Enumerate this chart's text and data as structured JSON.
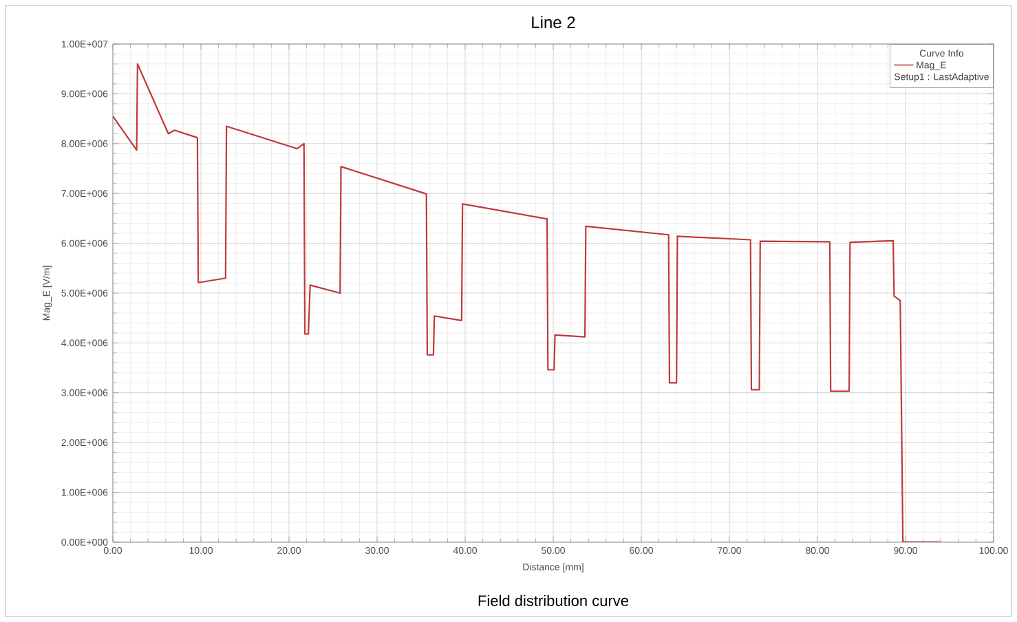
{
  "chart_data": {
    "type": "line",
    "title": "Line 2",
    "xlabel": "Distance [mm]",
    "ylabel": "Mag_E [V/m]",
    "legend_title": "Curve Info",
    "legend": "top right",
    "grid": true,
    "annotations": [
      "Setup1 : LastAdaptive",
      "Field distribution curve"
    ],
    "xlim": [
      0,
      100
    ],
    "ylim": [
      0,
      10000000
    ],
    "xticks": [
      {
        "value": 0,
        "label": "0.00"
      },
      {
        "value": 10,
        "label": "10.00"
      },
      {
        "value": 20,
        "label": "20.00"
      },
      {
        "value": 30,
        "label": "30.00"
      },
      {
        "value": 40,
        "label": "40.00"
      },
      {
        "value": 50,
        "label": "50.00"
      },
      {
        "value": 60,
        "label": "60.00"
      },
      {
        "value": 70,
        "label": "70.00"
      },
      {
        "value": 80,
        "label": "80.00"
      },
      {
        "value": 90,
        "label": "90.00"
      },
      {
        "value": 100,
        "label": "100.00"
      }
    ],
    "yticks": [
      {
        "value": 0,
        "label": "0.00E+000"
      },
      {
        "value": 1000000,
        "label": "1.00E+006"
      },
      {
        "value": 2000000,
        "label": "2.00E+006"
      },
      {
        "value": 3000000,
        "label": "3.00E+006"
      },
      {
        "value": 4000000,
        "label": "4.00E+006"
      },
      {
        "value": 5000000,
        "label": "5.00E+006"
      },
      {
        "value": 6000000,
        "label": "6.00E+006"
      },
      {
        "value": 7000000,
        "label": "7.00E+006"
      },
      {
        "value": 8000000,
        "label": "8.00E+006"
      },
      {
        "value": 9000000,
        "label": "9.00E+006"
      },
      {
        "value": 10000000,
        "label": "1.00E+007"
      }
    ],
    "series": [
      {
        "name": "Mag_E",
        "color": "#c0393b",
        "x": [
          0,
          2.7,
          2.8,
          6.3,
          7.0,
          9.6,
          9.7,
          12.8,
          12.9,
          20.9,
          21.7,
          21.8,
          22.2,
          22.4,
          25.8,
          25.9,
          35.6,
          35.7,
          36.4,
          36.5,
          39.6,
          39.7,
          49.3,
          49.4,
          50.1,
          50.2,
          53.6,
          53.7,
          63.1,
          63.2,
          64.0,
          64.1,
          72.4,
          72.5,
          73.4,
          73.5,
          81.4,
          81.5,
          83.6,
          83.7,
          88.6,
          88.7,
          89.4,
          89.7,
          94.0
        ],
        "values": [
          8550000,
          7870000,
          9600000,
          8200000,
          8270000,
          8120000,
          5210000,
          5300000,
          8350000,
          7900000,
          8000000,
          4180000,
          4180000,
          5160000,
          5000000,
          7540000,
          6990000,
          3760000,
          3760000,
          4540000,
          4450000,
          6790000,
          6490000,
          3460000,
          3460000,
          4160000,
          4120000,
          6340000,
          6170000,
          3200000,
          3200000,
          6140000,
          6070000,
          3060000,
          3060000,
          6040000,
          6030000,
          3030000,
          3030000,
          6020000,
          6050000,
          4940000,
          4850000,
          0,
          0
        ]
      }
    ]
  }
}
